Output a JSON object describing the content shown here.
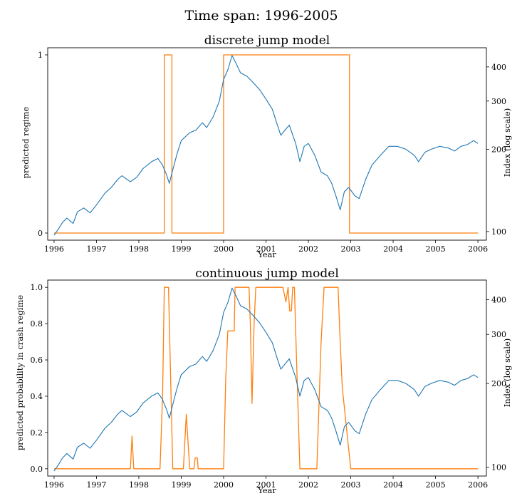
{
  "suptitle": "Time span: 1996-2005",
  "colors": {
    "regime": "#ff7f0e",
    "index": "#1f77b4",
    "axes": "#000000"
  },
  "chart_data": [
    {
      "type": "line",
      "title": "discrete jump model",
      "xlabel": "Year",
      "ylabel": "predicted regime",
      "y2label": "Index (log scale)",
      "xlim": [
        1995.85,
        2006.2
      ],
      "ylim": [
        -0.04,
        1.04
      ],
      "y2lim": [
        93,
        470
      ],
      "y2scale": "log",
      "xticks": [
        "1996",
        "1997",
        "1998",
        "1999",
        "2000",
        "2001",
        "2002",
        "2003",
        "2004",
        "2005",
        "2006"
      ],
      "xtick_values": [
        1996,
        1997,
        1998,
        1999,
        2000,
        2001,
        2002,
        2003,
        2004,
        2005,
        2006
      ],
      "yticks": [
        "0",
        "1"
      ],
      "ytick_values": [
        0,
        1
      ],
      "y2ticks": [
        "100",
        "200",
        "300",
        "400"
      ],
      "y2tick_values": [
        100,
        200,
        300,
        400
      ],
      "series": [
        {
          "axis": "left",
          "color": "#ff7f0e",
          "x": [
            1996.0,
            1998.6,
            1998.6,
            1998.78,
            1998.78,
            2000.0,
            2000.0,
            2002.97,
            2002.97,
            2006.0
          ],
          "y": [
            0,
            0,
            1,
            1,
            0,
            0,
            1,
            1,
            0,
            0
          ]
        },
        {
          "axis": "right",
          "color": "#1f77b4",
          "x": [
            1996.0,
            1996.1,
            1996.2,
            1996.3,
            1996.45,
            1996.55,
            1996.7,
            1996.85,
            1997.0,
            1997.2,
            1997.35,
            1997.5,
            1997.6,
            1997.8,
            1997.95,
            1998.1,
            1998.3,
            1998.45,
            1998.55,
            1998.65,
            1998.72,
            1998.8,
            1998.9,
            1999.0,
            1999.2,
            1999.35,
            1999.5,
            1999.6,
            1999.75,
            1999.9,
            2000.0,
            2000.1,
            2000.2,
            2000.3,
            2000.4,
            2000.55,
            2000.7,
            2000.85,
            2001.0,
            2001.15,
            2001.25,
            2001.35,
            2001.45,
            2001.55,
            2001.7,
            2001.8,
            2001.9,
            2002.0,
            2002.15,
            2002.3,
            2002.45,
            2002.55,
            2002.65,
            2002.75,
            2002.85,
            2002.95,
            2003.1,
            2003.2,
            2003.35,
            2003.5,
            2003.7,
            2003.9,
            2004.1,
            2004.3,
            2004.5,
            2004.6,
            2004.75,
            2004.9,
            2005.1,
            2005.3,
            2005.45,
            2005.6,
            2005.75,
            2005.9,
            2006.0
          ],
          "y": [
            97,
            102,
            108,
            112,
            107,
            118,
            122,
            117,
            125,
            138,
            145,
            155,
            160,
            152,
            158,
            170,
            180,
            185,
            176,
            162,
            150,
            168,
            192,
            215,
            230,
            235,
            250,
            240,
            262,
            300,
            360,
            390,
            440,
            410,
            380,
            370,
            350,
            330,
            305,
            280,
            250,
            225,
            235,
            245,
            210,
            180,
            205,
            210,
            190,
            165,
            160,
            150,
            135,
            120,
            140,
            145,
            135,
            132,
            155,
            175,
            190,
            205,
            205,
            200,
            190,
            180,
            195,
            200,
            205,
            202,
            197,
            205,
            208,
            215,
            210
          ]
        }
      ]
    },
    {
      "type": "line",
      "title": "continuous jump model",
      "xlabel": "Year",
      "ylabel": "predicted probability in crash regime",
      "y2label": "Index (log scale)",
      "xlim": [
        1995.85,
        2006.2
      ],
      "ylim": [
        -0.04,
        1.04
      ],
      "y2lim": [
        93,
        470
      ],
      "y2scale": "log",
      "xticks": [
        "1996",
        "1997",
        "1998",
        "1999",
        "2000",
        "2001",
        "2002",
        "2003",
        "2004",
        "2005",
        "2006"
      ],
      "xtick_values": [
        1996,
        1997,
        1998,
        1999,
        2000,
        2001,
        2002,
        2003,
        2004,
        2005,
        2006
      ],
      "yticks": [
        "0.0",
        "0.2",
        "0.4",
        "0.6",
        "0.8",
        "1.0"
      ],
      "ytick_values": [
        0,
        0.2,
        0.4,
        0.6,
        0.8,
        1.0
      ],
      "y2ticks": [
        "100",
        "200",
        "300",
        "400"
      ],
      "y2tick_values": [
        100,
        200,
        300,
        400
      ],
      "series": [
        {
          "axis": "left",
          "color": "#ff7f0e",
          "x": [
            1996.0,
            1997.8,
            1997.84,
            1997.88,
            1998.5,
            1998.56,
            1998.6,
            1998.7,
            1998.75,
            1998.8,
            1999.05,
            1999.12,
            1999.2,
            1999.3,
            1999.33,
            1999.38,
            1999.4,
            2000.0,
            2000.05,
            2000.1,
            2000.25,
            2000.27,
            2000.6,
            2000.63,
            2000.67,
            2000.72,
            2000.76,
            2000.8,
            2001.4,
            2001.47,
            2001.52,
            2001.56,
            2001.6,
            2001.63,
            2001.67,
            2001.72,
            2001.8,
            2001.9,
            2002.2,
            2002.3,
            2002.37,
            2002.7,
            2002.75,
            2002.8,
            2003.0,
            2006.0
          ],
          "y": [
            0.0,
            0.0,
            0.18,
            0.0,
            0.0,
            0.4,
            1.0,
            1.0,
            0.5,
            0.0,
            0.0,
            0.3,
            0.0,
            0.0,
            0.06,
            0.06,
            0.0,
            0.0,
            0.5,
            0.76,
            0.76,
            1.0,
            1.0,
            0.8,
            0.36,
            0.8,
            1.0,
            1.0,
            1.0,
            0.92,
            1.0,
            0.87,
            0.87,
            1.0,
            1.0,
            0.6,
            0.0,
            0.0,
            0.0,
            0.7,
            1.0,
            1.0,
            0.7,
            0.45,
            0.0,
            0.0
          ]
        },
        {
          "axis": "right",
          "color": "#1f77b4",
          "x": [
            1996.0,
            1996.1,
            1996.2,
            1996.3,
            1996.45,
            1996.55,
            1996.7,
            1996.85,
            1997.0,
            1997.2,
            1997.35,
            1997.5,
            1997.6,
            1997.8,
            1997.95,
            1998.1,
            1998.3,
            1998.45,
            1998.55,
            1998.65,
            1998.72,
            1998.8,
            1998.9,
            1999.0,
            1999.2,
            1999.35,
            1999.5,
            1999.6,
            1999.75,
            1999.9,
            2000.0,
            2000.1,
            2000.2,
            2000.3,
            2000.4,
            2000.55,
            2000.7,
            2000.85,
            2001.0,
            2001.15,
            2001.25,
            2001.35,
            2001.45,
            2001.55,
            2001.7,
            2001.8,
            2001.9,
            2002.0,
            2002.15,
            2002.3,
            2002.45,
            2002.55,
            2002.65,
            2002.75,
            2002.85,
            2002.95,
            2003.1,
            2003.2,
            2003.35,
            2003.5,
            2003.7,
            2003.9,
            2004.1,
            2004.3,
            2004.5,
            2004.6,
            2004.75,
            2004.9,
            2005.1,
            2005.3,
            2005.45,
            2005.6,
            2005.75,
            2005.9,
            2006.0
          ],
          "y": [
            97,
            102,
            108,
            112,
            107,
            118,
            122,
            117,
            125,
            138,
            145,
            155,
            160,
            152,
            158,
            170,
            180,
            185,
            176,
            162,
            150,
            168,
            192,
            215,
            230,
            235,
            250,
            240,
            262,
            300,
            360,
            390,
            440,
            410,
            380,
            370,
            350,
            330,
            305,
            280,
            250,
            225,
            235,
            245,
            210,
            180,
            205,
            210,
            190,
            165,
            160,
            150,
            135,
            120,
            140,
            145,
            135,
            132,
            155,
            175,
            190,
            205,
            205,
            200,
            190,
            180,
            195,
            200,
            205,
            202,
            197,
            205,
            208,
            215,
            210
          ]
        }
      ]
    }
  ]
}
